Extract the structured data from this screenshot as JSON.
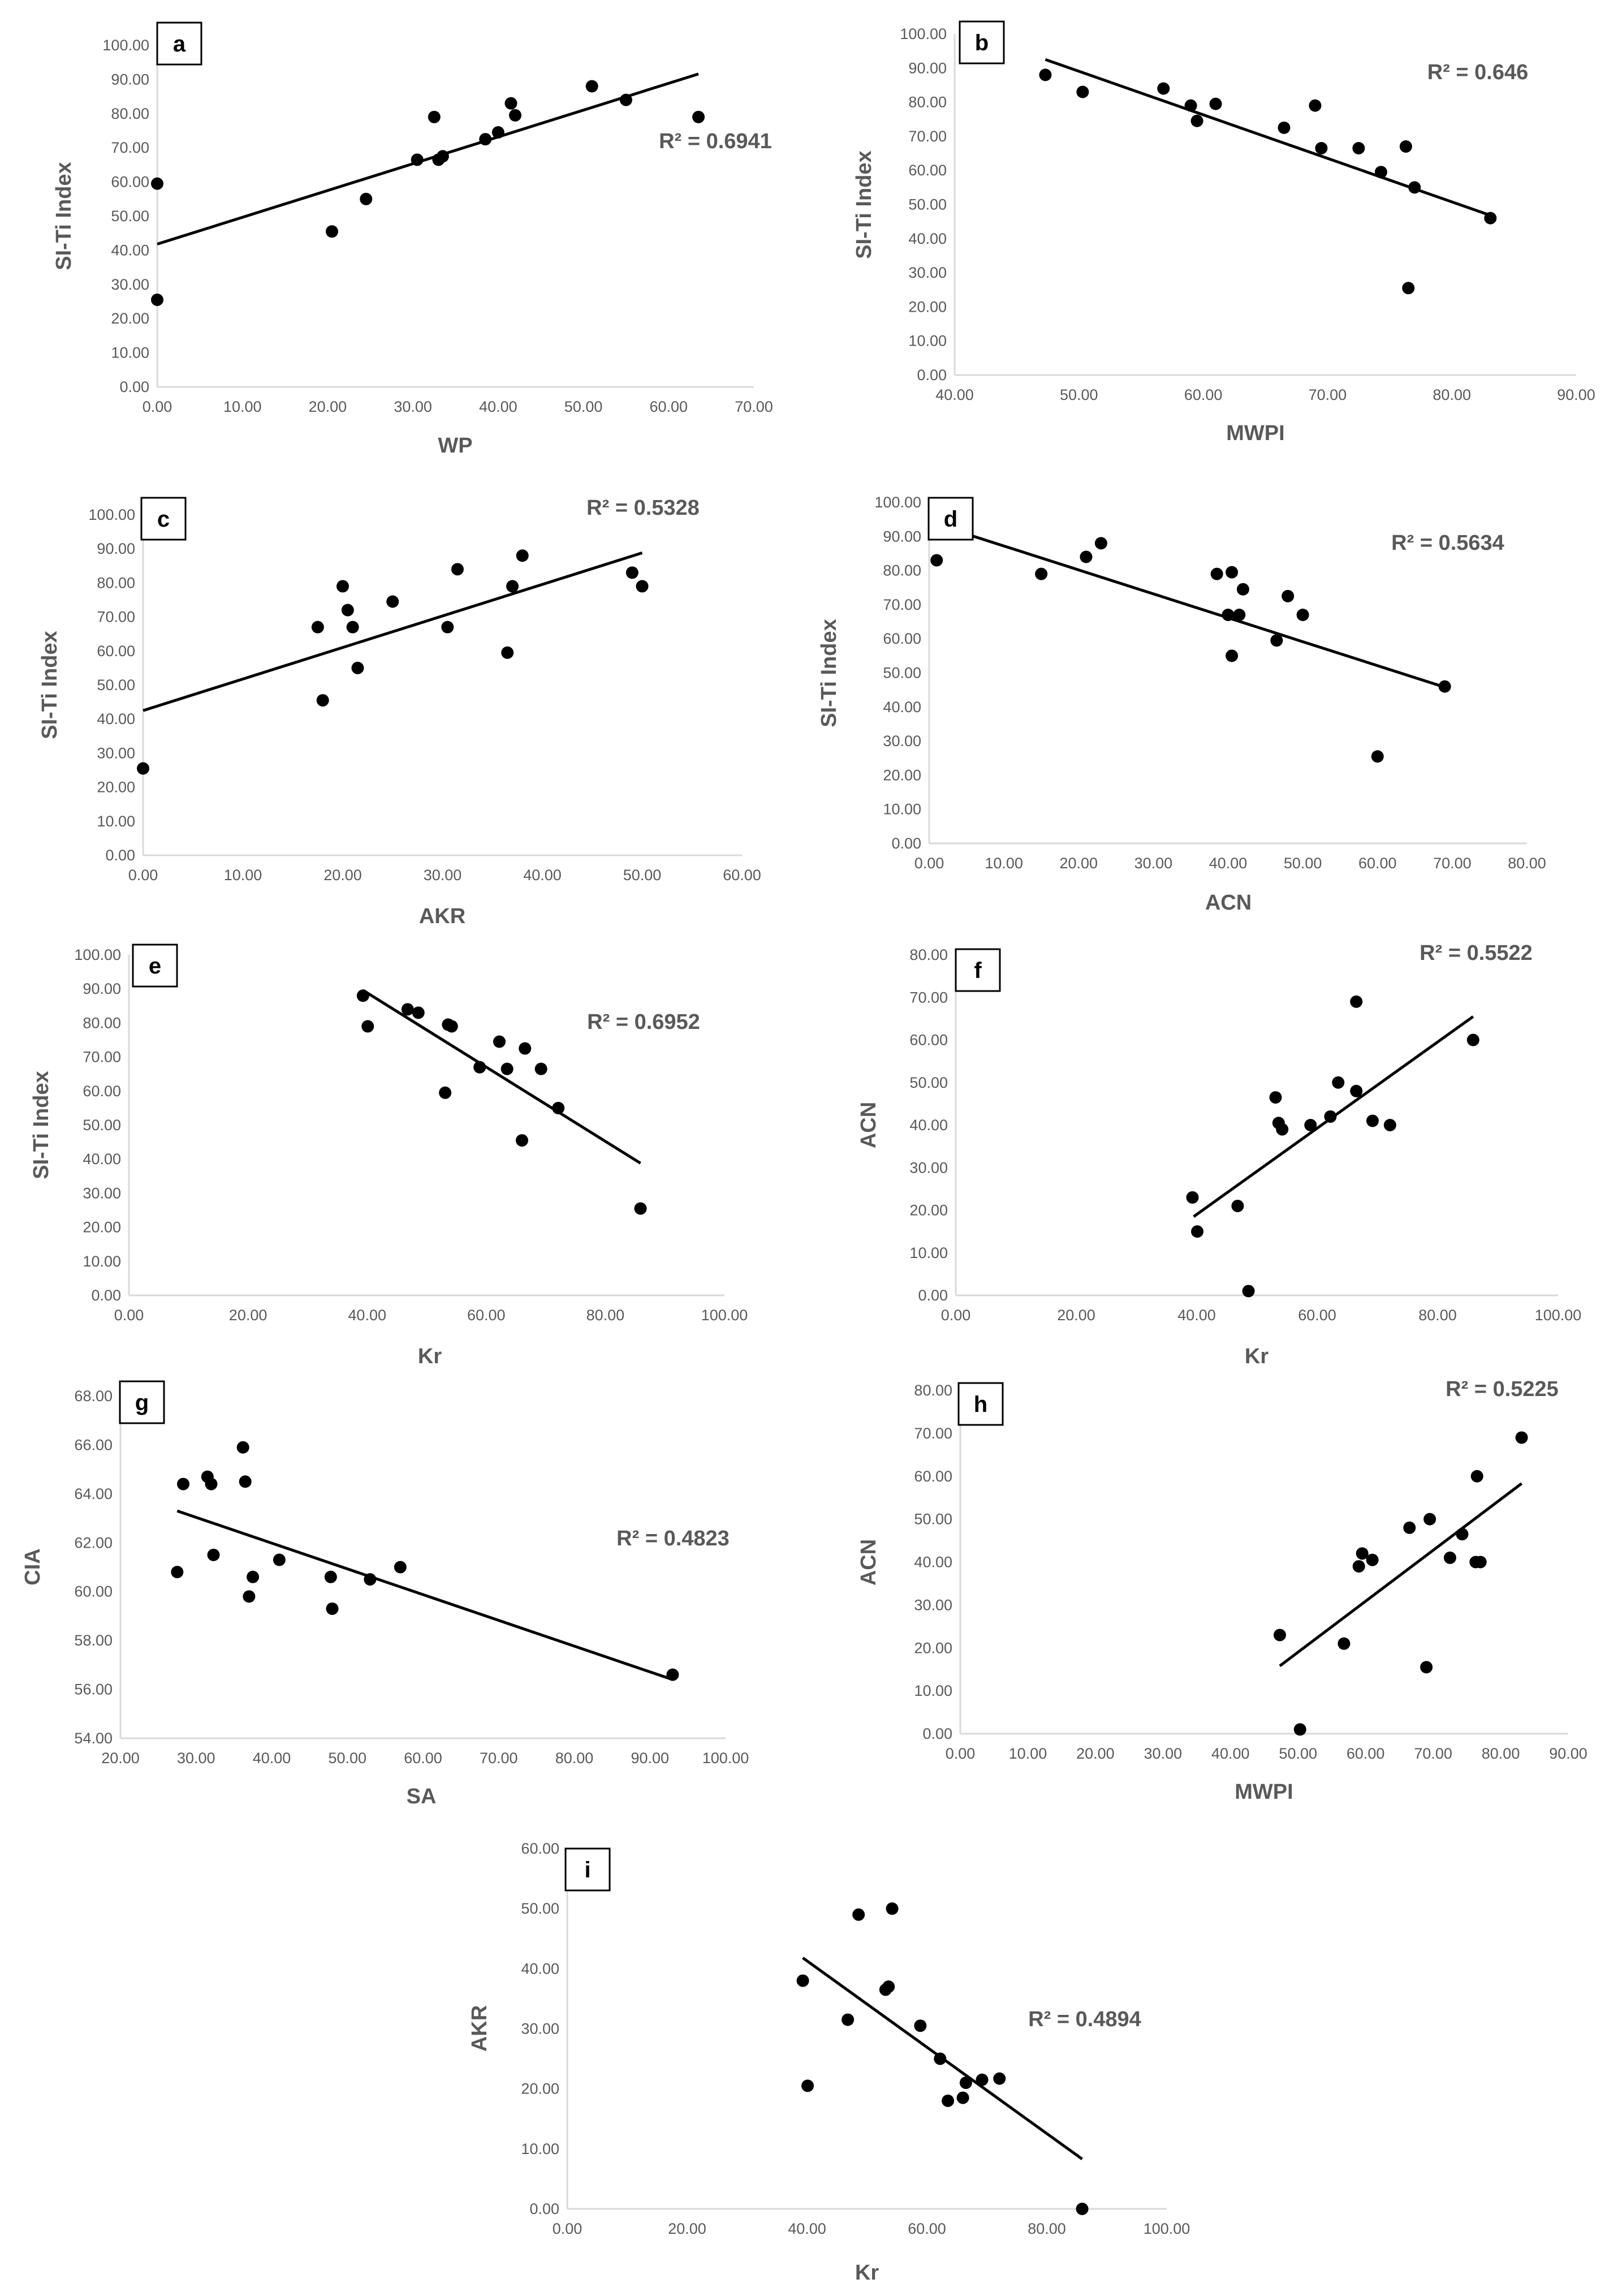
{
  "colors": {
    "marker": "#000000",
    "trendline": "#000000",
    "axis_line": "#d9d9d9",
    "text": "#595959"
  },
  "chart_data": [
    {
      "id": "a",
      "type": "scatter",
      "xlabel": "WP",
      "ylabel": "SI-Ti Index",
      "r2_label": "R² = 0.6941",
      "xlim": [
        0,
        70
      ],
      "xtick_step": 10,
      "ylim": [
        0,
        100
      ],
      "ytick_step": 10,
      "tick_decimals": 2,
      "trendline": {
        "x": [
          0,
          63.5
        ],
        "y": [
          41.8,
          91.6
        ]
      },
      "x": [
        0,
        0,
        20.5,
        24.5,
        30.5,
        32.5,
        33,
        33.5,
        38.5,
        40,
        41.5,
        42,
        51,
        55,
        63.5
      ],
      "y": [
        59.5,
        25.5,
        45.5,
        55,
        66.5,
        79,
        66.5,
        67.5,
        72.5,
        74.5,
        83,
        79.5,
        88,
        84,
        79
      ]
    },
    {
      "id": "b",
      "type": "scatter",
      "xlabel": "MWPI",
      "ylabel": "SI-Ti Index",
      "r2_label": "R² = 0.646",
      "xlim": [
        40,
        90
      ],
      "xtick_step": 10,
      "ylim": [
        0,
        100
      ],
      "ytick_step": 10,
      "tick_decimals": 2,
      "trendline": {
        "x": [
          47.3,
          83.1
        ],
        "y": [
          92.5,
          46.8
        ]
      },
      "x": [
        47.3,
        50.3,
        56.8,
        59,
        59.5,
        61,
        66.5,
        69,
        69.5,
        72.5,
        74.3,
        76.3,
        76.5,
        77,
        83.1
      ],
      "y": [
        88,
        83,
        84,
        79,
        74.5,
        79.5,
        72.5,
        79,
        66.5,
        66.5,
        59.5,
        67,
        25.5,
        55,
        46
      ]
    },
    {
      "id": "c",
      "type": "scatter",
      "xlabel": "AKR",
      "ylabel": "SI-Ti Index",
      "r2_label": "R² = 0.5328",
      "xlim": [
        0,
        60
      ],
      "xtick_step": 10,
      "ylim": [
        0,
        100
      ],
      "ytick_step": 10,
      "tick_decimals": 2,
      "trendline": {
        "x": [
          0,
          50
        ],
        "y": [
          42.5,
          88.8
        ]
      },
      "x": [
        0,
        17.5,
        18,
        20,
        20.5,
        21,
        21.5,
        25,
        30.5,
        31.5,
        36.5,
        37,
        38,
        49,
        50
      ],
      "y": [
        25.5,
        67,
        45.5,
        79,
        72,
        67,
        55,
        74.5,
        67,
        84,
        59.5,
        79,
        88,
        83,
        79
      ]
    },
    {
      "id": "d",
      "type": "scatter",
      "xlabel": "ACN",
      "ylabel": "SI-Ti Index",
      "r2_label": "R² = 0.5634",
      "xlim": [
        0,
        80
      ],
      "xtick_step": 10,
      "ylim": [
        0,
        100
      ],
      "ytick_step": 10,
      "tick_decimals": 2,
      "trendline": {
        "x": [
          1,
          69
        ],
        "y": [
          93.5,
          45.8
        ]
      },
      "x": [
        1,
        15,
        21,
        23,
        38.5,
        40,
        40.5,
        40.5,
        41.5,
        42,
        46.5,
        48,
        50,
        60,
        69
      ],
      "y": [
        83,
        79,
        84,
        88,
        79,
        67,
        55,
        79.5,
        67,
        74.5,
        59.5,
        72.5,
        67,
        25.5,
        46
      ]
    },
    {
      "id": "e",
      "type": "scatter",
      "xlabel": "Kr",
      "ylabel": "SI-Ti Index",
      "r2_label": "R² = 0.6952",
      "xlim": [
        0,
        100
      ],
      "xtick_step": 20,
      "ylim": [
        0,
        100
      ],
      "ytick_step": 10,
      "tick_decimals": 2,
      "trendline": {
        "x": [
          39.3,
          85.9
        ],
        "y": [
          89.6,
          38.8
        ]
      },
      "x": [
        39.3,
        40.1,
        46.8,
        48.6,
        53.1,
        53.6,
        54.2,
        58.9,
        62.2,
        63.5,
        66,
        66.5,
        69.2,
        72.1,
        85.9
      ],
      "y": [
        88,
        79,
        84,
        83,
        59.5,
        79.5,
        79,
        67,
        74.5,
        66.5,
        45.5,
        72.5,
        66.5,
        55,
        25.5
      ]
    },
    {
      "id": "f",
      "type": "scatter",
      "xlabel": "Kr",
      "ylabel": "ACN",
      "r2_label": "R² = 0.5522",
      "xlim": [
        0,
        100
      ],
      "xtick_step": 20,
      "ylim": [
        0,
        80
      ],
      "ytick_step": 10,
      "tick_decimals": 2,
      "trendline": {
        "x": [
          39.5,
          85.9
        ],
        "y": [
          18.5,
          65.5
        ]
      },
      "x": [
        39.3,
        40.1,
        46.8,
        48.6,
        53.1,
        53.6,
        54.2,
        58.9,
        62.2,
        63.5,
        66.5,
        66.5,
        69.2,
        72.1,
        85.9
      ],
      "y": [
        23,
        15,
        21,
        1,
        46.5,
        40.5,
        39,
        40,
        42,
        50,
        69,
        48,
        41,
        40,
        60
      ]
    },
    {
      "id": "g",
      "type": "scatter",
      "xlabel": "SA",
      "ylabel": "CIA",
      "r2_label": "R² = 0.4823",
      "xlim": [
        20,
        100
      ],
      "xtick_step": 10,
      "ylim": [
        54,
        68
      ],
      "ytick_step": 2,
      "tick_decimals": 2,
      "trendline": {
        "x": [
          27.5,
          93
        ],
        "y": [
          63.3,
          56.4
        ]
      },
      "x": [
        27.5,
        28.3,
        31.5,
        32,
        32.3,
        36.2,
        36.5,
        37,
        37.5,
        41,
        47.8,
        48,
        53,
        57,
        93
      ],
      "y": [
        60.8,
        64.4,
        64.7,
        64.4,
        61.5,
        65.9,
        64.5,
        59.8,
        60.6,
        61.3,
        60.6,
        59.3,
        60.5,
        61,
        56.6
      ]
    },
    {
      "id": "h",
      "type": "scatter",
      "xlabel": "MWPI",
      "ylabel": "ACN",
      "r2_label": "R² = 0.5225",
      "xlim": [
        0,
        90
      ],
      "xtick_step": 10,
      "ylim": [
        0,
        80
      ],
      "ytick_step": 10,
      "tick_decimals": 2,
      "trendline": {
        "x": [
          47.3,
          83.1
        ],
        "y": [
          15.8,
          58.3
        ]
      },
      "x": [
        47.3,
        50.3,
        56.8,
        59,
        59.5,
        61,
        66.5,
        69,
        69.5,
        72.5,
        74.3,
        76.3,
        76.5,
        77,
        83.1
      ],
      "y": [
        23,
        1,
        21,
        39,
        42,
        40.5,
        48,
        15.5,
        50,
        41,
        46.5,
        40,
        60,
        40,
        69
      ]
    },
    {
      "id": "i",
      "type": "scatter",
      "xlabel": "Kr",
      "ylabel": "AKR",
      "r2_label": "R² = 0.4894",
      "xlim": [
        0,
        100
      ],
      "xtick_step": 20,
      "ylim": [
        0,
        60
      ],
      "ytick_step": 10,
      "tick_decimals": 2,
      "trendline": {
        "x": [
          39.3,
          85.9
        ],
        "y": [
          41.8,
          8.3
        ]
      },
      "x": [
        39.3,
        40.1,
        46.8,
        48.6,
        53.1,
        53.6,
        54.2,
        58.9,
        62.2,
        63.5,
        66,
        66.5,
        69.2,
        72.1,
        85.9
      ],
      "y": [
        38,
        20.5,
        31.5,
        49,
        36.5,
        37,
        50,
        30.5,
        25,
        18,
        18.5,
        21,
        21.5,
        21.7,
        0
      ]
    }
  ]
}
